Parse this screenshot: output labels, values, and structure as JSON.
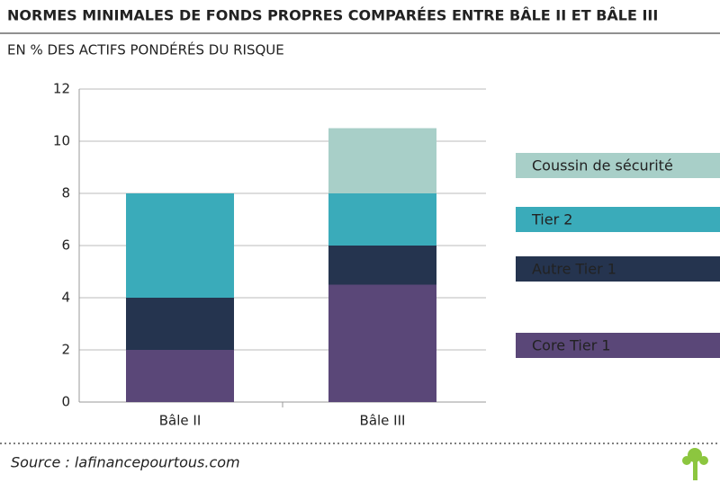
{
  "chart_data": {
    "type": "stacked-bar",
    "title": "NORMES MINIMALES DE FONDS PROPRES COMPARÉES ENTRE BÂLE II ET BÂLE III",
    "subtitle": "EN % DES ACTIFS PONDÉRÉS DU RISQUE",
    "source": "Source : lafinancepourtous.com",
    "categories": [
      "Bâle II",
      "Bâle III"
    ],
    "series": [
      {
        "name": "Core Tier 1",
        "color": "#5a4778",
        "values": [
          2,
          4.5
        ]
      },
      {
        "name": "Autre Tier 1",
        "color": "#25344f",
        "values": [
          2,
          1.5
        ]
      },
      {
        "name": "Tier 2",
        "color": "#3aabba",
        "values": [
          4,
          2
        ]
      },
      {
        "name": "Coussin de sécurité",
        "color": "#a8cfc8",
        "values": [
          null,
          2.5
        ]
      }
    ],
    "ylim": [
      0,
      12
    ],
    "yticks": [
      0,
      2,
      4,
      6,
      8,
      10,
      12
    ],
    "grid": true
  }
}
